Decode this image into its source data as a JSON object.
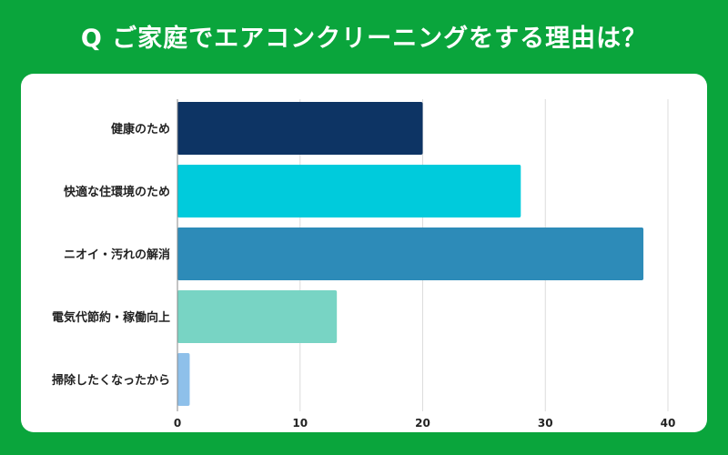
{
  "title": "Q ご家庭でエアコンクリーニングをする理由は？",
  "colors": {
    "background": "#0aa53c",
    "panel": "#ffffff",
    "grid": "#dcdcdc"
  },
  "chart_data": {
    "type": "bar",
    "orientation": "horizontal",
    "title": "",
    "xlabel": "",
    "ylabel": "",
    "categories": [
      "健康のため",
      "快適な住環境のため",
      "ニオイ・汚れの解消",
      "電気代節約・稼働向上",
      "掃除したくなったから"
    ],
    "values": [
      20,
      28,
      38,
      13,
      1
    ],
    "bar_colors": [
      "#0d3464",
      "#00cbdc",
      "#2d8bb8",
      "#78d4c4",
      "#8ec0ea"
    ],
    "xlim": [
      0,
      40
    ],
    "xticks": [
      0,
      10,
      20,
      30,
      40
    ],
    "grid": true,
    "legend": "none"
  }
}
